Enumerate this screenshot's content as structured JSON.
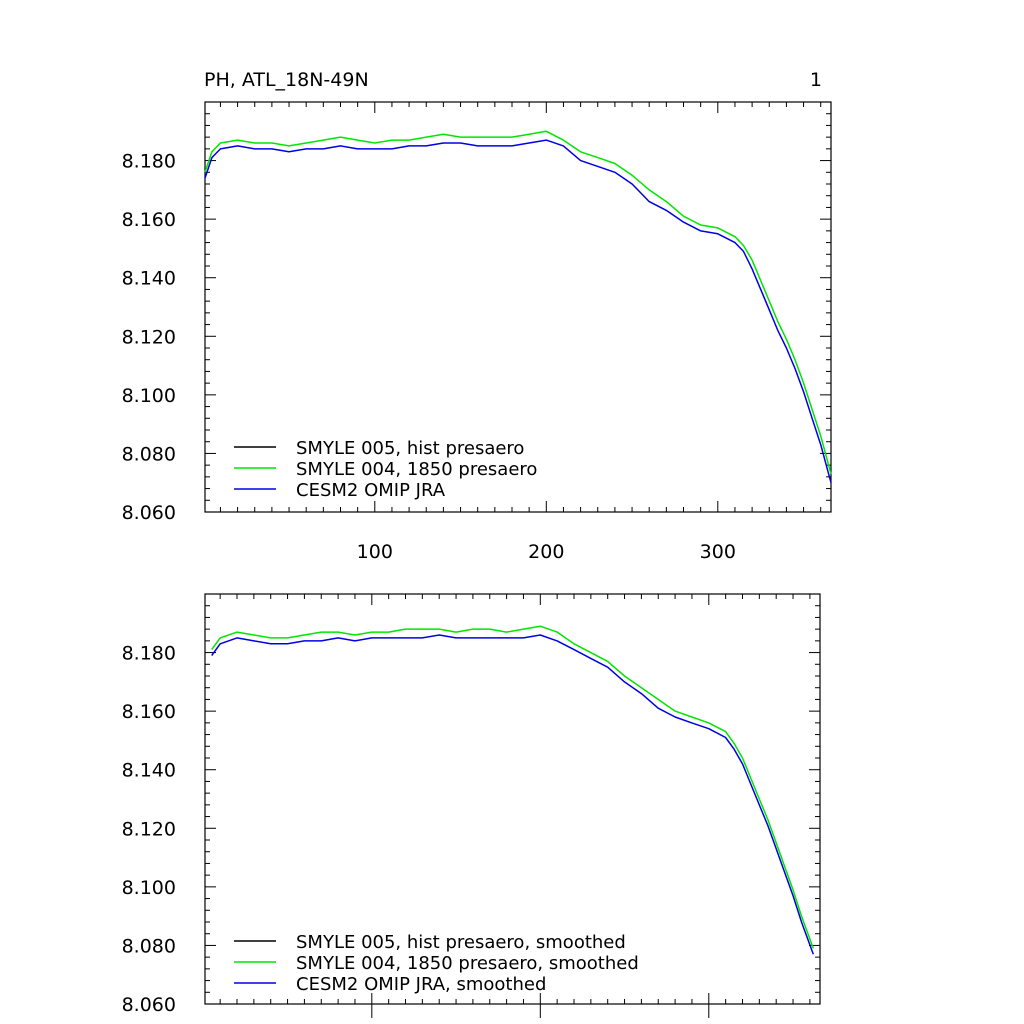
{
  "colors": {
    "hist": "#000000",
    "p1850": "#00e600",
    "omip": "#0000e6",
    "axis": "#000000"
  },
  "chart_data": [
    {
      "type": "line",
      "title": "PH, ATL_18N-49N",
      "corner_label": "1",
      "xlabel": "",
      "ylabel": "",
      "xlim": [
        1,
        366
      ],
      "ylim": [
        8.06,
        8.2
      ],
      "xticks": [
        100,
        200,
        300
      ],
      "xtick_labels": [
        "100",
        "200",
        "300"
      ],
      "yticks": [
        8.06,
        8.08,
        8.1,
        8.12,
        8.14,
        8.16,
        8.18
      ],
      "ytick_labels": [
        "8.060",
        "8.080",
        "8.100",
        "8.120",
        "8.140",
        "8.160",
        "8.180"
      ],
      "legend_position": "bottom-left",
      "grid": false,
      "series": [
        {
          "name": "SMYLE 005, hist presaero",
          "color": "hist",
          "visible": false,
          "x": [],
          "y": []
        },
        {
          "name": "SMYLE 004, 1850 presaero",
          "color": "p1850",
          "x": [
            1,
            5,
            10,
            20,
            30,
            40,
            50,
            60,
            70,
            80,
            90,
            100,
            110,
            120,
            130,
            140,
            150,
            160,
            170,
            180,
            190,
            200,
            210,
            220,
            230,
            240,
            250,
            260,
            270,
            280,
            290,
            300,
            310,
            315,
            320,
            325,
            330,
            335,
            340,
            345,
            350,
            355,
            360,
            366
          ],
          "y": [
            8.176,
            8.183,
            8.186,
            8.187,
            8.186,
            8.186,
            8.185,
            8.186,
            8.187,
            8.188,
            8.187,
            8.186,
            8.187,
            8.187,
            8.188,
            8.189,
            8.188,
            8.188,
            8.188,
            8.188,
            8.189,
            8.19,
            8.187,
            8.183,
            8.181,
            8.179,
            8.175,
            8.17,
            8.166,
            8.161,
            8.158,
            8.157,
            8.154,
            8.151,
            8.146,
            8.139,
            8.132,
            8.125,
            8.119,
            8.112,
            8.104,
            8.095,
            8.086,
            8.073
          ]
        },
        {
          "name": "CESM2 OMIP JRA",
          "color": "omip",
          "x": [
            1,
            5,
            10,
            20,
            30,
            40,
            50,
            60,
            70,
            80,
            90,
            100,
            110,
            120,
            130,
            140,
            150,
            160,
            170,
            180,
            190,
            200,
            210,
            220,
            230,
            240,
            250,
            260,
            270,
            280,
            290,
            300,
            310,
            315,
            320,
            325,
            330,
            335,
            340,
            345,
            350,
            355,
            360,
            366
          ],
          "y": [
            8.174,
            8.181,
            8.184,
            8.185,
            8.184,
            8.184,
            8.183,
            8.184,
            8.184,
            8.185,
            8.184,
            8.184,
            8.184,
            8.185,
            8.185,
            8.186,
            8.186,
            8.185,
            8.185,
            8.185,
            8.186,
            8.187,
            8.185,
            8.18,
            8.178,
            8.176,
            8.172,
            8.166,
            8.163,
            8.159,
            8.156,
            8.155,
            8.152,
            8.149,
            8.143,
            8.136,
            8.129,
            8.122,
            8.116,
            8.109,
            8.101,
            8.092,
            8.083,
            8.07
          ]
        }
      ]
    },
    {
      "type": "line",
      "title": "",
      "xlabel": "",
      "ylabel": "",
      "xlim": [
        1,
        366
      ],
      "ylim": [
        8.06,
        8.2
      ],
      "xticks": [
        100,
        200,
        300
      ],
      "xtick_labels": [],
      "yticks": [
        8.06,
        8.08,
        8.1,
        8.12,
        8.14,
        8.16,
        8.18
      ],
      "ytick_labels": [
        "8.060",
        "8.080",
        "8.100",
        "8.120",
        "8.140",
        "8.160",
        "8.180"
      ],
      "legend_position": "bottom-left",
      "grid": false,
      "series": [
        {
          "name": "SMYLE 005, hist presaero, smoothed",
          "color": "hist",
          "visible": false,
          "x": [],
          "y": []
        },
        {
          "name": "SMYLE 004, 1850 presaero, smoothed",
          "color": "p1850",
          "x": [
            5,
            10,
            20,
            30,
            40,
            50,
            60,
            70,
            80,
            90,
            100,
            110,
            120,
            130,
            140,
            150,
            160,
            170,
            180,
            190,
            200,
            210,
            220,
            230,
            240,
            250,
            260,
            270,
            280,
            290,
            300,
            310,
            315,
            320,
            325,
            330,
            335,
            340,
            345,
            350,
            355,
            362
          ],
          "y": [
            8.181,
            8.185,
            8.187,
            8.186,
            8.185,
            8.185,
            8.186,
            8.187,
            8.187,
            8.186,
            8.187,
            8.187,
            8.188,
            8.188,
            8.188,
            8.187,
            8.188,
            8.188,
            8.187,
            8.188,
            8.189,
            8.187,
            8.183,
            8.18,
            8.177,
            8.172,
            8.168,
            8.164,
            8.16,
            8.158,
            8.156,
            8.153,
            8.149,
            8.144,
            8.137,
            8.13,
            8.123,
            8.115,
            8.107,
            8.099,
            8.09,
            8.079
          ]
        },
        {
          "name": "CESM2 OMIP JRA, smoothed",
          "color": "omip",
          "x": [
            5,
            10,
            20,
            30,
            40,
            50,
            60,
            70,
            80,
            90,
            100,
            110,
            120,
            130,
            140,
            150,
            160,
            170,
            180,
            190,
            200,
            210,
            220,
            230,
            240,
            250,
            260,
            270,
            280,
            290,
            300,
            310,
            315,
            320,
            325,
            330,
            335,
            340,
            345,
            350,
            355,
            362
          ],
          "y": [
            8.179,
            8.183,
            8.185,
            8.184,
            8.183,
            8.183,
            8.184,
            8.184,
            8.185,
            8.184,
            8.185,
            8.185,
            8.185,
            8.185,
            8.186,
            8.185,
            8.185,
            8.185,
            8.185,
            8.185,
            8.186,
            8.184,
            8.181,
            8.178,
            8.175,
            8.17,
            8.166,
            8.161,
            8.158,
            8.156,
            8.154,
            8.151,
            8.147,
            8.142,
            8.135,
            8.128,
            8.121,
            8.113,
            8.105,
            8.097,
            8.088,
            8.077
          ]
        }
      ]
    }
  ]
}
